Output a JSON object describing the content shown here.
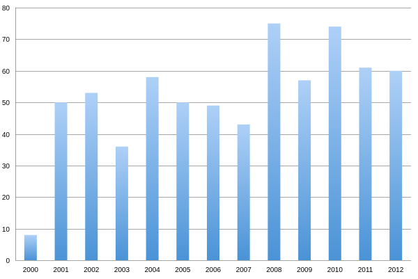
{
  "chart_data": {
    "type": "bar",
    "categories": [
      "2000",
      "2001",
      "2002",
      "2003",
      "2004",
      "2005",
      "2006",
      "2007",
      "2008",
      "2009",
      "2010",
      "2011",
      "2012"
    ],
    "values": [
      8,
      50,
      53,
      36,
      58,
      50,
      49,
      43,
      75,
      57,
      74,
      61,
      60
    ],
    "title": "",
    "xlabel": "",
    "ylabel": "",
    "ylim": [
      0,
      80
    ],
    "yticks": [
      "0",
      "10",
      "20",
      "30",
      "40",
      "50",
      "60",
      "70",
      "80"
    ],
    "grid": true,
    "legend": "none",
    "colors": {
      "bar_top": "#aed0f7",
      "bar_bottom": "#4a93d6",
      "gridline": "#888888",
      "axis": "#888888"
    }
  }
}
